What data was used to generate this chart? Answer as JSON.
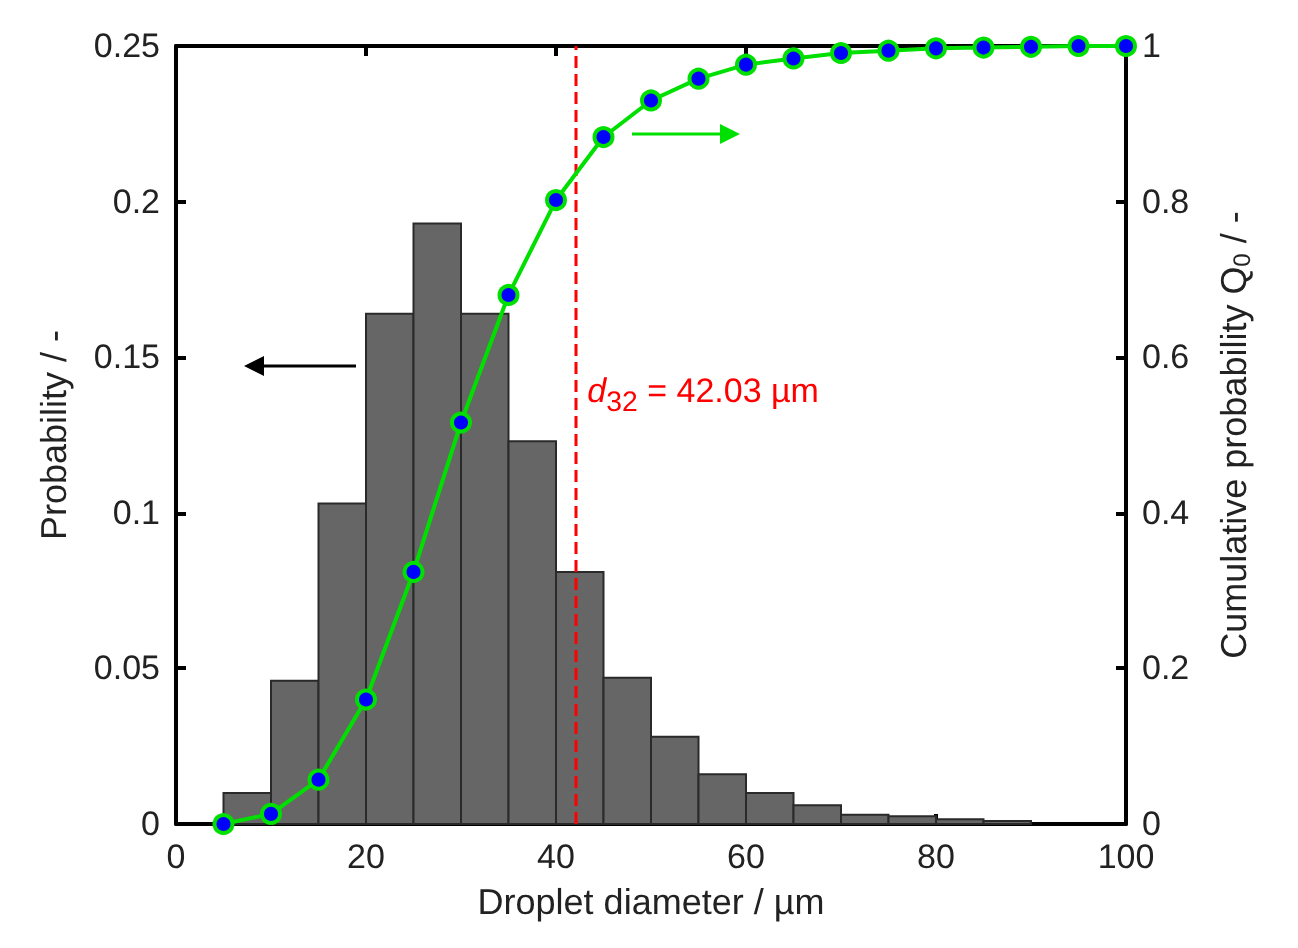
{
  "chart_data": {
    "type": "histogram",
    "xlabel": "Droplet diameter / µm",
    "ylabel": "Probability / -",
    "y2label": "Cumulative probability Q$_{0}$ / -",
    "bins": [
      5,
      10,
      15,
      20,
      25,
      30,
      35,
      40,
      45,
      50,
      55,
      60,
      65,
      70,
      75,
      80,
      85,
      90
    ],
    "series": [
      {
        "color": "#666666",
        "values": [
          0.01,
          0.046,
          0.103,
          0.164,
          0.193,
          0.164,
          0.123,
          0.081,
          0.047,
          0.028,
          0.016,
          0.01,
          0.006,
          0.003,
          0.0025,
          0.0015,
          0.001
        ]
      },
      {
        "type": "line",
        "axis": "y2",
        "color": "#00e000",
        "marker": "circle",
        "x": [
          5,
          10,
          15,
          20,
          25,
          30,
          35,
          40,
          45,
          50,
          55,
          60,
          65,
          70,
          75,
          80,
          85,
          90,
          95,
          100
        ],
        "values": [
          0,
          0.013,
          0.057,
          0.16,
          0.324,
          0.516,
          0.68,
          0.802,
          0.883,
          0.93,
          0.958,
          0.976,
          0.984,
          0.991,
          0.994,
          0.997,
          0.998,
          0.999,
          1,
          1
        ]
      }
    ],
    "xlim": [
      0,
      100
    ],
    "xticks": [
      0,
      20,
      40,
      60,
      80,
      100
    ],
    "ylim": [
      0,
      0.25
    ],
    "yticks": [
      0,
      0.05,
      0.1,
      0.15,
      0.2,
      0.25
    ],
    "y2lim": [
      0,
      1
    ],
    "y2ticks": [
      0,
      0.2,
      0.4,
      0.6,
      0.8,
      1
    ],
    "ref_lines": [
      {
        "axis": "x",
        "value": 42.03,
        "label": "d$_{32}$ = 42.03 µm",
        "color": "#ff0000",
        "line_style": "dashed"
      }
    ],
    "grid": false
  }
}
